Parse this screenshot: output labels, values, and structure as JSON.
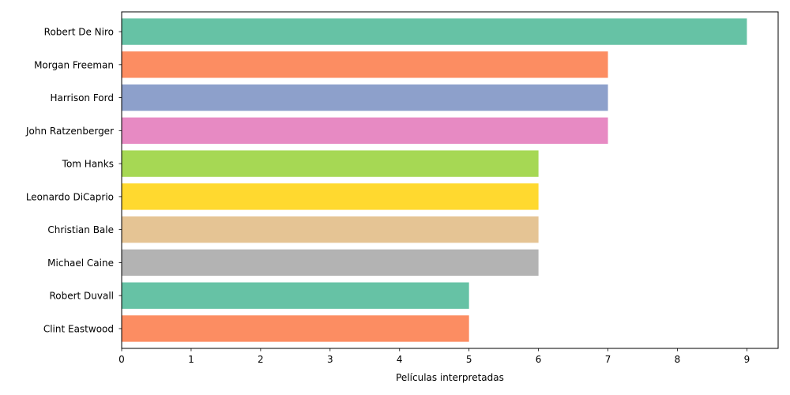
{
  "chart_data": {
    "type": "bar",
    "orientation": "horizontal",
    "title": "",
    "xlabel": "Películas interpretadas",
    "ylabel": "",
    "xlim": [
      0,
      9.45
    ],
    "xticks": [
      0,
      1,
      2,
      3,
      4,
      5,
      6,
      7,
      8,
      9
    ],
    "grid": false,
    "categories": [
      "Robert De Niro",
      "Morgan Freeman",
      "Harrison Ford",
      "John Ratzenberger",
      "Tom Hanks",
      "Leonardo DiCaprio",
      "Christian Bale",
      "Michael Caine",
      "Robert Duvall",
      "Clint Eastwood"
    ],
    "values": [
      9,
      7,
      7,
      7,
      6,
      6,
      6,
      6,
      5,
      5
    ],
    "colors": [
      "#66c2a5",
      "#fc8d62",
      "#8da0cb",
      "#e78ac3",
      "#a6d854",
      "#ffd92f",
      "#e5c494",
      "#b3b3b3",
      "#66c2a5",
      "#fc8d62"
    ]
  }
}
